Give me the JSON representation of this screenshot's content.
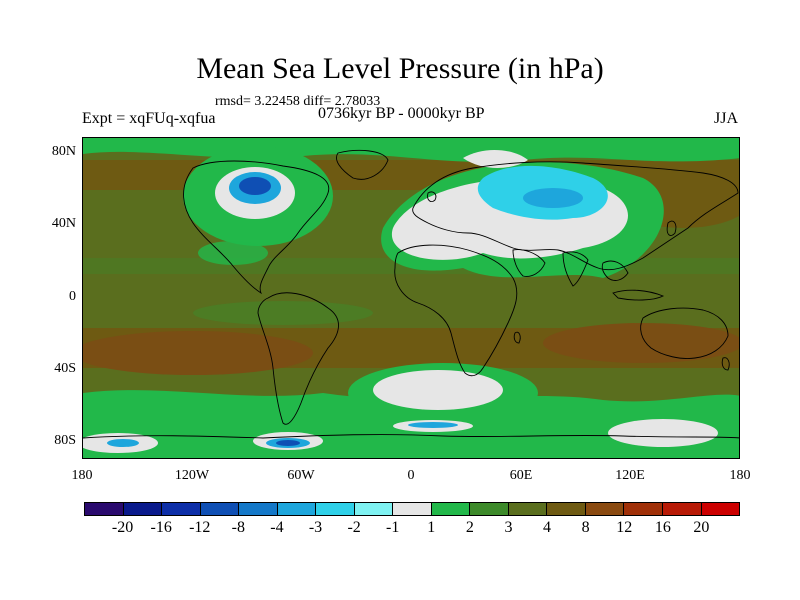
{
  "title": "Mean Sea Level Pressure (in hPa)",
  "stats": "rmsd= 3.22458 diff= 2.78033",
  "experiment": "Expt = xqFUq-xqfua",
  "period": "0736kyr BP - 0000kyr BP",
  "season": "JJA",
  "map": {
    "lat_labels": [
      "80N",
      "40N",
      "0",
      "40S",
      "80S"
    ],
    "lon_labels": [
      "180",
      "120W",
      "60W",
      "0",
      "60E",
      "120E",
      "180"
    ]
  },
  "colorbar": {
    "colors": [
      "#2a0a6e",
      "#0a1a8c",
      "#0d2fa8",
      "#0f4fb4",
      "#1478c8",
      "#1ea6dc",
      "#2fd0e8",
      "#7ff2f2",
      "#e6e6e6",
      "#22b84a",
      "#3d8a2a",
      "#5a6e1e",
      "#6e5a12",
      "#8a4a10",
      "#a03008",
      "#b81a06",
      "#cc0000"
    ],
    "labels": [
      "-20",
      "-16",
      "-12",
      "-8",
      "-4",
      "-3",
      "-2",
      "-1",
      "1",
      "2",
      "3",
      "4",
      "8",
      "12",
      "16",
      "20"
    ]
  }
}
